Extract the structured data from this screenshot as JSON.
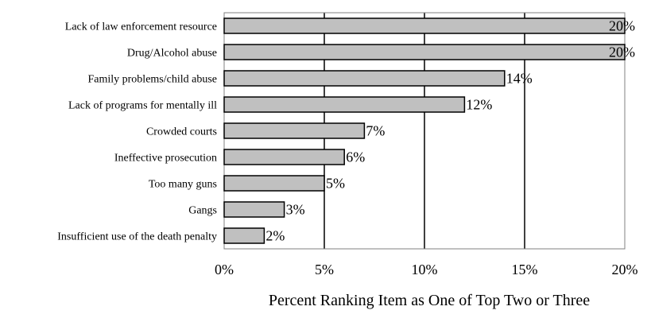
{
  "chart_data": {
    "type": "bar",
    "orientation": "horizontal",
    "categories": [
      "Lack of law enforcement resource",
      "Drug/Alcohol abuse",
      "Family problems/child abuse",
      "Lack of programs for mentally ill",
      "Crowded courts",
      "Ineffective prosecution",
      "Too many guns",
      "Gangs",
      "Insufficient use of the death penalty"
    ],
    "values": [
      20,
      20,
      14,
      12,
      7,
      6,
      5,
      3,
      2
    ],
    "data_labels": [
      "20%",
      "20%",
      "14%",
      "12%",
      "7%",
      "6%",
      "5%",
      "3%",
      "2%"
    ],
    "xlabel": "Percent Ranking Item as One of Top Two or Three",
    "xlim": [
      0,
      20
    ],
    "xticks": [
      0,
      5,
      10,
      15,
      20
    ],
    "xtick_labels": [
      "0%",
      "5%",
      "10%",
      "15%",
      "20%"
    ],
    "grid": "vertical",
    "bar_color": "#c0c0c0",
    "legend": "none"
  }
}
